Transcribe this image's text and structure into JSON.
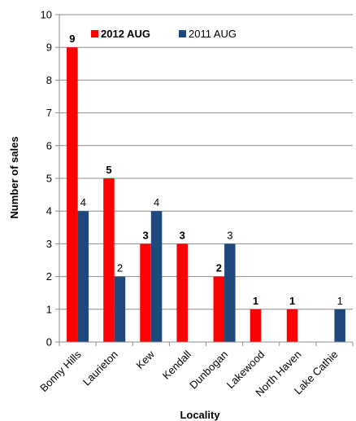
{
  "chart_data": {
    "type": "bar",
    "title": "",
    "xlabel": "Locality",
    "ylabel": "Number of sales",
    "ylim": [
      0,
      10
    ],
    "yticks": [
      "0",
      "1",
      "2",
      "3",
      "4",
      "5",
      "6",
      "7",
      "8",
      "9",
      "10"
    ],
    "grid": true,
    "legend_position": "top",
    "categories": [
      "Bonny Hills",
      "Laurieton",
      "Kew",
      "Kendall",
      "Dunbogan",
      "Lakewood",
      "North Haven",
      "Lake Cathie"
    ],
    "series": [
      {
        "name": "2012 AUG",
        "color": "#ff0000",
        "values": [
          9,
          5,
          3,
          3,
          2,
          1,
          1,
          0
        ],
        "labels": [
          "9",
          "5",
          "3",
          "3",
          "2",
          "1",
          "1",
          ""
        ]
      },
      {
        "name": "2011 AUG",
        "color": "#1f497d",
        "values": [
          4,
          2,
          4,
          0,
          3,
          0,
          0,
          1
        ],
        "labels": [
          "4",
          "2",
          "4",
          "",
          "3",
          "",
          "",
          "1"
        ]
      }
    ]
  }
}
